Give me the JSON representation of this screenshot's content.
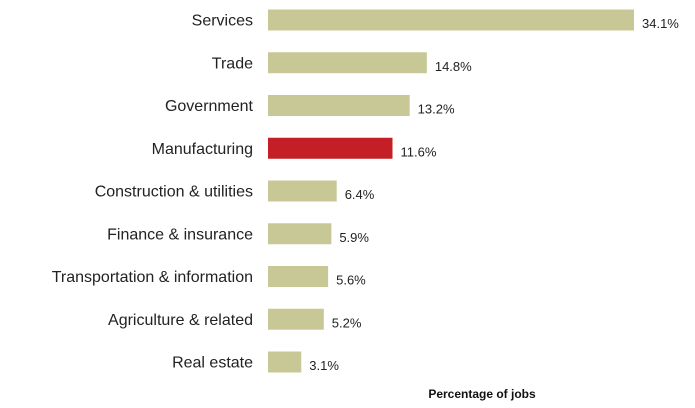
{
  "chart_data": {
    "type": "bar",
    "orientation": "horizontal",
    "categories": [
      "Services",
      "Trade",
      "Government",
      "Manufacturing",
      "Construction & utilities",
      "Finance & insurance",
      "Transportation & information",
      "Agriculture & related",
      "Real estate"
    ],
    "values": [
      34.1,
      14.8,
      13.2,
      11.6,
      6.4,
      5.9,
      5.6,
      5.2,
      3.1
    ],
    "value_labels": [
      "34.1%",
      "14.8%",
      "13.2%",
      "11.6%",
      "6.4%",
      "5.9%",
      "5.6%",
      "5.2%",
      "3.1%"
    ],
    "xlabel": "Percentage of jobs",
    "xlim": [
      0,
      34.1
    ],
    "grid": false,
    "colors": {
      "default_bar": "#c8c896",
      "highlight_bar": "#c41f26"
    },
    "highlight_category": "Manufacturing"
  }
}
